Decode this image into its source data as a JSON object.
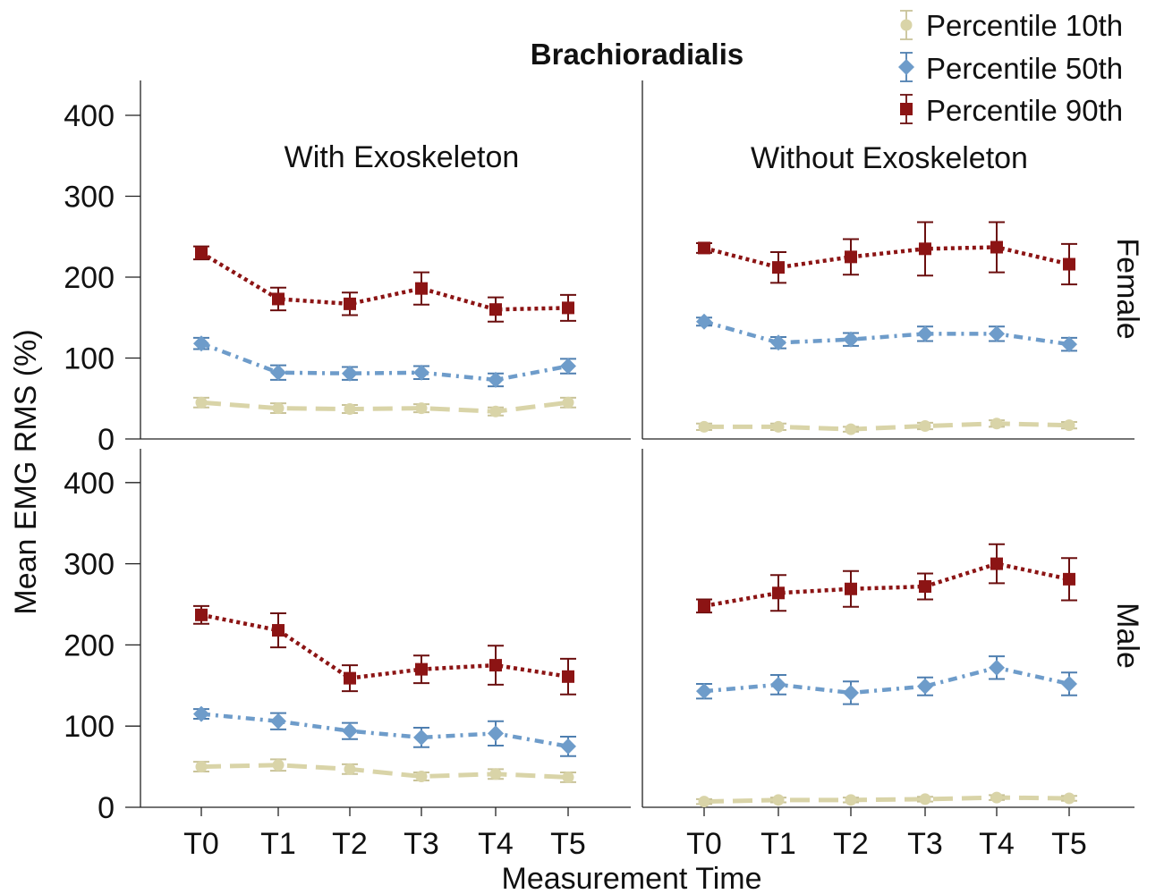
{
  "chart_data": {
    "type": "line",
    "title": "Brachioradialis",
    "xlabel": "Measurement Time",
    "ylabel": "Mean EMG RMS (%)",
    "ylim": [
      0,
      440
    ],
    "yticks": [
      0,
      100,
      200,
      300,
      400
    ],
    "categories": [
      "T0",
      "T1",
      "T2",
      "T3",
      "T4",
      "T5"
    ],
    "columns": [
      "With Exoskeleton",
      "Without Exoskeleton"
    ],
    "rows": [
      "Female",
      "Male"
    ],
    "legend": {
      "position": "top-right",
      "entries": [
        {
          "name": "Percentile 10th",
          "color": "#d9d4a8",
          "marker": "circle",
          "dash": "long-dash"
        },
        {
          "name": "Percentile 50th",
          "color": "#6e9cca",
          "marker": "diamond",
          "dash": "dash-dot"
        },
        {
          "name": "Percentile 90th",
          "color": "#8c1414",
          "marker": "square",
          "dash": "dotted"
        }
      ]
    },
    "grid": false,
    "panels": [
      {
        "column": "With Exoskeleton",
        "row": "Female",
        "series": [
          {
            "name": "Percentile 10th",
            "values": [
              45,
              38,
              37,
              38,
              34,
              45
            ],
            "err": [
              6,
              6,
              5,
              5,
              5,
              6
            ]
          },
          {
            "name": "Percentile 50th",
            "values": [
              118,
              82,
              81,
              82,
              73,
              90
            ],
            "err": [
              7,
              9,
              8,
              8,
              8,
              9
            ]
          },
          {
            "name": "Percentile 90th",
            "values": [
              230,
              173,
              167,
              186,
              160,
              162
            ],
            "err": [
              8,
              14,
              14,
              20,
              15,
              16
            ]
          }
        ]
      },
      {
        "column": "Without Exoskeleton",
        "row": "Female",
        "series": [
          {
            "name": "Percentile 10th",
            "values": [
              15,
              15,
              12,
              16,
              19,
              17
            ],
            "err": [
              4,
              4,
              3,
              4,
              4,
              4
            ]
          },
          {
            "name": "Percentile 50th",
            "values": [
              145,
              119,
              123,
              130,
              130,
              117
            ],
            "err": [
              5,
              7,
              8,
              9,
              9,
              8
            ]
          },
          {
            "name": "Percentile 90th",
            "values": [
              236,
              212,
              225,
              235,
              237,
              216
            ],
            "err": [
              6,
              19,
              22,
              33,
              31,
              25
            ]
          }
        ]
      },
      {
        "column": "With Exoskeleton",
        "row": "Male",
        "series": [
          {
            "name": "Percentile 10th",
            "values": [
              50,
              52,
              47,
              38,
              41,
              37
            ],
            "err": [
              6,
              7,
              6,
              5,
              6,
              6
            ]
          },
          {
            "name": "Percentile 50th",
            "values": [
              115,
              106,
              94,
              86,
              91,
              75
            ],
            "err": [
              6,
              10,
              10,
              12,
              15,
              12
            ]
          },
          {
            "name": "Percentile 90th",
            "values": [
              237,
              218,
              159,
              170,
              175,
              161
            ],
            "err": [
              11,
              21,
              16,
              17,
              24,
              22
            ]
          }
        ]
      },
      {
        "column": "Without Exoskeleton",
        "row": "Male",
        "series": [
          {
            "name": "Percentile 10th",
            "values": [
              7,
              9,
              9,
              10,
              12,
              11
            ],
            "err": [
              3,
              3,
              3,
              3,
              3,
              3
            ]
          },
          {
            "name": "Percentile 50th",
            "values": [
              143,
              151,
              141,
              149,
              172,
              152
            ],
            "err": [
              9,
              12,
              14,
              11,
              14,
              14
            ]
          },
          {
            "name": "Percentile 90th",
            "values": [
              248,
              264,
              269,
              272,
              300,
              281
            ],
            "err": [
              8,
              22,
              22,
              16,
              24,
              26
            ]
          }
        ]
      }
    ]
  }
}
